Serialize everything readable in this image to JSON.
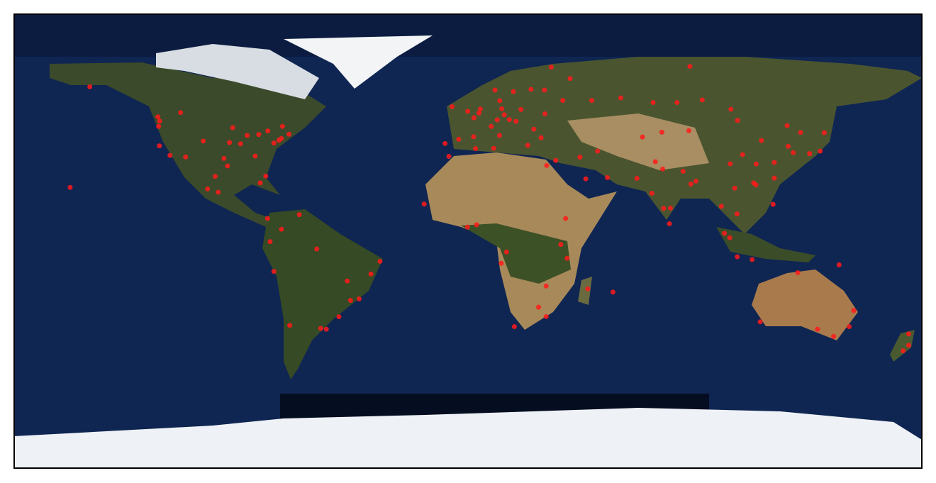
{
  "chart_data": {
    "type": "scatter",
    "color": "#ff1a1a",
    "xlim": [
      -180,
      180
    ],
    "ylim": [
      -90,
      90
    ],
    "x": [
      -74,
      -71,
      -77,
      -75,
      -87.6,
      -83,
      -84.4,
      -80.2,
      -95.4,
      -96.8,
      -105,
      -112,
      -118.2,
      -122.4,
      -122.3,
      -122.7,
      -93.3,
      -90.2,
      -94.6,
      -79.4,
      -73.6,
      -123,
      -114,
      -150,
      -99.1,
      -103.3,
      -100.3,
      -82.4,
      -79.5,
      -74,
      -66.9,
      -77,
      -78.5,
      -70.7,
      -58.4,
      -46.6,
      -43.2,
      -47.9,
      -38.5,
      -34.9,
      -60,
      -51.2,
      -56.2,
      -157.8,
      -0.1,
      2.35,
      -3.7,
      -9.1,
      2.2,
      12.5,
      9.2,
      13.4,
      11.6,
      16.4,
      21,
      14.4,
      4.9,
      4.35,
      18,
      10.7,
      25,
      12.6,
      -6.3,
      23.7,
      29,
      26.1,
      19,
      30.5,
      37.6,
      30.3,
      49.1,
      60.6,
      82.9,
      73.4,
      92.9,
      104.3,
      131.9,
      33,
      40.5,
      88,
      31.2,
      34.8,
      46.7,
      55.3,
      51.4,
      44.4,
      67,
      -7.6,
      3,
      10.2,
      3.4,
      -0.2,
      -17.4,
      36.8,
      38.7,
      15.3,
      13.2,
      28,
      18.4,
      31,
      31,
      39.3,
      47.5,
      57.5,
      77.2,
      72.9,
      77.6,
      80.3,
      88.4,
      90.4,
      79.9,
      85.3,
      74.3,
      69.2,
      76.9,
      100.5,
      105.8,
      106.7,
      101.7,
      103.8,
      106.8,
      112.7,
      121,
      114.2,
      113.3,
      121.5,
      116.4,
      104,
      114.3,
      108.9,
      126.6,
      127,
      129,
      139.7,
      135.5,
      141.3,
      121.5,
      106.9,
      87.6,
      151.2,
      145,
      153,
      115.9,
      138.6,
      130.8,
      174.8,
      174.8,
      172.6,
      147.2
    ],
    "y": [
      40.7,
      42.4,
      38.9,
      40,
      41.9,
      42.3,
      33.7,
      25.8,
      29.8,
      32.8,
      39.7,
      33.4,
      34,
      37.8,
      47.6,
      45.5,
      45,
      38.6,
      39.1,
      43.7,
      45.5,
      49.3,
      51,
      61.2,
      19.4,
      20.7,
      25.7,
      23.1,
      9,
      4.7,
      10.5,
      -12,
      -0.2,
      -33.4,
      -34.6,
      -23.5,
      -22.9,
      -15.8,
      -13,
      -8,
      -3.1,
      -30,
      -34.9,
      21.3,
      51.5,
      48.9,
      40.4,
      38.7,
      41.4,
      41.9,
      45.5,
      52.5,
      48.1,
      48.2,
      52.2,
      50.1,
      52.4,
      50.8,
      59.3,
      59.9,
      60.2,
      55.7,
      53.3,
      38,
      41,
      44.4,
      47.5,
      50.5,
      55.8,
      59.9,
      55.8,
      56.8,
      55,
      55,
      56,
      52.3,
      43.1,
      69,
      64.5,
      69.3,
      30,
      32,
      24.7,
      25.2,
      35.7,
      33.3,
      24.9,
      33.6,
      36.7,
      36.8,
      6.5,
      5.6,
      14.7,
      -1.3,
      9,
      -4.3,
      -8.8,
      -26.2,
      -33.9,
      -29.9,
      -17.8,
      -6.8,
      -18.9,
      -20.2,
      28.6,
      19,
      13,
      13.1,
      22.6,
      23.8,
      6.9,
      27.7,
      31.5,
      41.3,
      43.2,
      13.8,
      21,
      10.8,
      3.1,
      1.35,
      -6.2,
      -7.3,
      14.6,
      22.3,
      23.1,
      31.2,
      39.9,
      30.7,
      30.6,
      34.3,
      45.8,
      37.6,
      35.1,
      35.7,
      34.7,
      43,
      25,
      47.9,
      43.8,
      -33.9,
      -37.8,
      -27.5,
      -32,
      -34.9,
      -12.5,
      -36.8,
      -41.3,
      -43.5,
      -9.4
    ]
  }
}
